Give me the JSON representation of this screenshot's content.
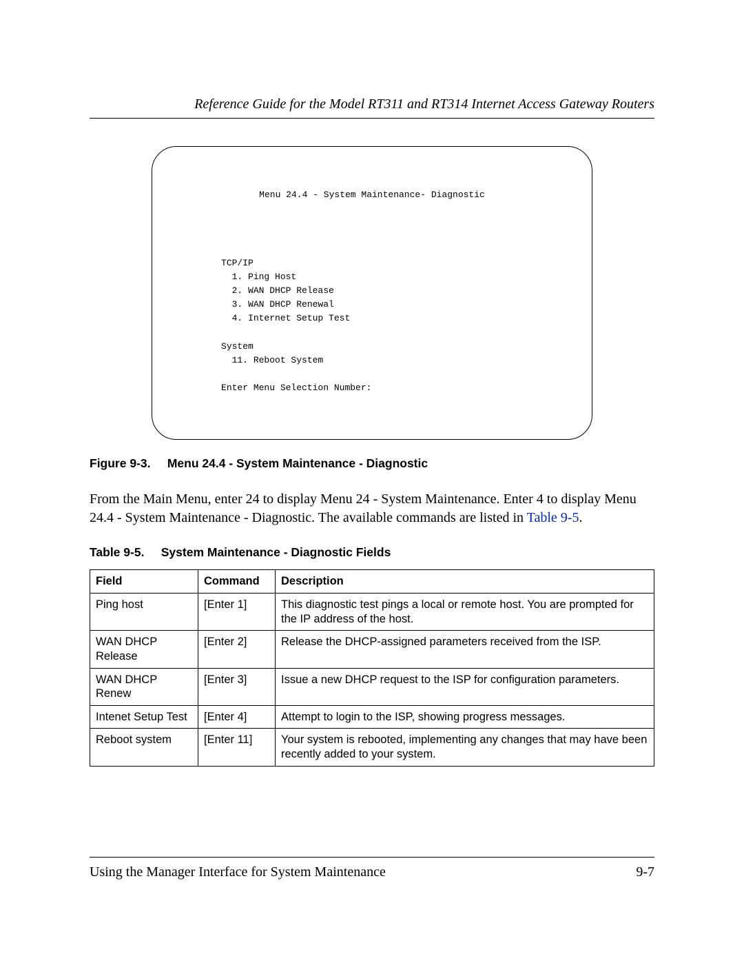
{
  "header": {
    "running_title": "Reference Guide for the Model RT311 and RT314 Internet Access Gateway Routers"
  },
  "terminal": {
    "title": "Menu 24.4 - System Maintenance- Diagnostic",
    "body": "          TCP/IP\n            1. Ping Host\n            2. WAN DHCP Release\n            3. WAN DHCP Renewal\n            4. Internet Setup Test\n\n          System\n            11. Reboot System\n\n          Enter Menu Selection Number:"
  },
  "figure": {
    "label": "Figure 9-3.",
    "title": "Menu 24.4 - System Maintenance - Diagnostic"
  },
  "paragraph": {
    "pre": "From the Main Menu, enter 24 to display Menu 24 - System Maintenance. Enter 4 to display Menu 24.4 - System Maintenance - Diagnostic. The available commands are listed in ",
    "link": "Table 9-5",
    "post": "."
  },
  "table": {
    "label": "Table 9-5.",
    "title": "System Maintenance - Diagnostic Fields",
    "columns": [
      "Field",
      "Command",
      "Description"
    ],
    "rows": [
      [
        "Ping host",
        "[Enter 1]",
        "This diagnostic test pings a local or remote host. You are prompted for the IP address of the host."
      ],
      [
        "WAN DHCP Release",
        "[Enter 2]",
        "Release the DHCP-assigned parameters received from the ISP."
      ],
      [
        "WAN DHCP Renew",
        "[Enter 3]",
        "Issue a new DHCP request to the ISP for configuration parameters."
      ],
      [
        "Intenet Setup Test",
        "[Enter 4]",
        "Attempt to login to the ISP, showing progress messages."
      ],
      [
        "Reboot system",
        "[Enter 11]",
        "Your system is rebooted, implementing any changes that may have been recently added to your system."
      ]
    ]
  },
  "footer": {
    "section": "Using the Manager Interface for System Maintenance",
    "page": "9-7"
  }
}
